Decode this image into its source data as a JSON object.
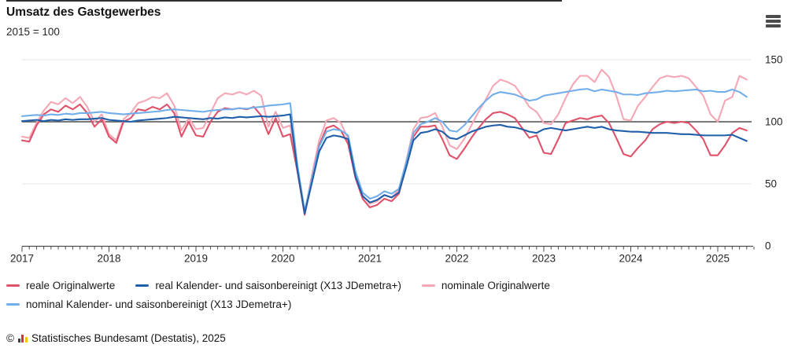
{
  "header": {
    "title": "Umsatz des Gastgewerbes",
    "subtitle": "2015 = 100"
  },
  "chart_data": {
    "type": "line",
    "title": "Umsatz des Gastgewerbes",
    "index_base": "2015 = 100",
    "x_unit": "month",
    "x_start": "2017-01",
    "x_end": "2025-05",
    "xticks": [
      "2017",
      "2018",
      "2019",
      "2020",
      "2021",
      "2022",
      "2023",
      "2024",
      "2025"
    ],
    "yticks": [
      0,
      50,
      100,
      150
    ],
    "ylim": [
      0,
      157
    ],
    "reference_line": 100,
    "grid": "horizontal",
    "legend_position": "bottom",
    "draw_order": [
      2,
      0,
      3,
      1
    ],
    "series": [
      {
        "name": "reale Originalwerte",
        "color": "#e0516a",
        "values": [
          85,
          84,
          97,
          106,
          110,
          108,
          113,
          110,
          114,
          107,
          96,
          102,
          88,
          83,
          100,
          103,
          110,
          109,
          112,
          110,
          114,
          107,
          88,
          100,
          89,
          88,
          100,
          108,
          111,
          110,
          111,
          110,
          112,
          105,
          90,
          103,
          88,
          90,
          60,
          25,
          54,
          81,
          95,
          97,
          93,
          82,
          55,
          38,
          31,
          33,
          38,
          36,
          42,
          64,
          88,
          96,
          96,
          97,
          86,
          73,
          70,
          78,
          87,
          95,
          102,
          107,
          108,
          106,
          103,
          95,
          87,
          89,
          75,
          74,
          86,
          99,
          101,
          103,
          102,
          104,
          105,
          99,
          87,
          74,
          72,
          79,
          85,
          94,
          98,
          100,
          99,
          100,
          99,
          93,
          86,
          73,
          73,
          81,
          91,
          95,
          93
        ]
      },
      {
        "name": "real Kalender- und saisonbereinigt (X13 JDemetra+)",
        "color": "#1f5fa9",
        "values": [
          100.5,
          101,
          101.5,
          100.5,
          101.5,
          101,
          102,
          101.5,
          102,
          102,
          102.5,
          103,
          101.5,
          101,
          100.5,
          100,
          101,
          101.5,
          102,
          102.5,
          103,
          104,
          103.5,
          103,
          102.5,
          102,
          103,
          102.5,
          103.5,
          103,
          104,
          103.5,
          104,
          104.5,
          104,
          104.5,
          105,
          106,
          61,
          26,
          51,
          76,
          87,
          89,
          88,
          86,
          56,
          40,
          35,
          37,
          41,
          39,
          43,
          63,
          85,
          91,
          92,
          94,
          92,
          87,
          86,
          89,
          92,
          94,
          96,
          97,
          97.5,
          96,
          95.5,
          94,
          92,
          91,
          94,
          95,
          94,
          93,
          94,
          95,
          96,
          95,
          96,
          94,
          93,
          92.5,
          92,
          92,
          91.5,
          91,
          91,
          91,
          90.5,
          90,
          90,
          89.5,
          89,
          89,
          89,
          89,
          89.5,
          87,
          84.5
        ]
      },
      {
        "name": "nominale Originalwerte",
        "color": "#f6a7b6",
        "values": [
          88,
          87,
          99,
          109,
          116,
          114,
          119,
          115,
          120,
          112,
          100,
          106,
          90,
          85,
          102,
          107,
          115,
          117,
          120,
          119,
          123,
          113,
          93,
          103,
          94,
          95,
          107,
          119,
          123,
          122,
          124,
          122,
          125,
          121,
          96,
          108,
          95,
          97,
          63,
          27,
          57,
          85,
          101,
          103,
          99,
          86,
          58,
          41,
          34,
          36,
          41,
          39,
          45,
          68,
          94,
          103,
          104,
          107,
          96,
          81,
          78,
          86,
          97,
          108,
          118,
          129,
          134,
          132,
          129,
          121,
          112,
          108,
          99,
          98,
          106,
          119,
          130,
          137,
          137,
          132,
          142,
          136,
          121,
          102,
          101,
          113,
          120,
          128,
          135,
          137,
          136,
          137,
          135,
          128,
          121,
          106,
          100,
          117,
          120,
          137,
          134
        ]
      },
      {
        "name": "nominal Kalender- und saisonbereinigt (X13 JDemetra+)",
        "color": "#72aee9",
        "values": [
          104.5,
          105,
          105.5,
          105,
          106,
          105.5,
          106.5,
          106,
          107,
          107,
          107.5,
          108,
          107,
          106.5,
          106,
          106.5,
          107,
          107.5,
          108,
          108.5,
          109.5,
          110,
          109.5,
          109,
          108.5,
          108,
          109,
          109.5,
          110,
          110,
          111,
          110.5,
          111.5,
          112,
          113,
          113.5,
          114,
          115,
          65,
          28,
          54,
          80,
          92,
          94,
          93,
          89,
          60,
          43,
          38,
          40,
          44,
          42,
          46,
          67,
          91,
          98,
          100,
          103,
          100,
          93,
          92,
          97,
          104,
          111,
          117,
          122,
          124,
          123,
          122,
          119.5,
          117,
          118,
          121,
          122,
          123,
          124,
          125,
          126,
          126.5,
          124.5,
          126,
          125,
          124,
          122,
          122,
          121.5,
          123,
          123.5,
          124,
          125,
          124.5,
          125,
          125.5,
          126,
          124.5,
          125,
          124,
          124,
          126,
          124,
          120
        ]
      }
    ]
  },
  "footer": {
    "copyright": "©",
    "source": "Statistisches Bundesamt (Destatis), 2025"
  }
}
